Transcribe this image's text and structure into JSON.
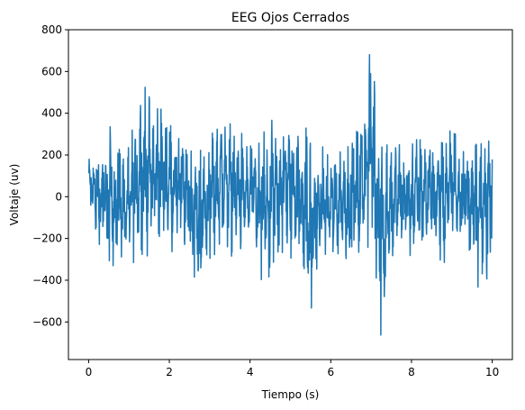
{
  "chart_data": {
    "type": "line",
    "title": "EEG Ojos Cerrados",
    "xlabel": "Tiempo (s)",
    "ylabel": "Voltaje (uv)",
    "xlim": [
      -0.5,
      10.5
    ],
    "ylim": [
      -780,
      800
    ],
    "x_ticks": [
      0,
      2,
      4,
      6,
      8,
      10
    ],
    "y_ticks": [
      -600,
      -400,
      -200,
      0,
      200,
      400,
      600,
      800
    ],
    "x_tick_labels": [
      "0",
      "2",
      "4",
      "6",
      "8",
      "10"
    ],
    "y_tick_labels": [
      "−600",
      "−400",
      "−200",
      "0",
      "200",
      "400",
      "600",
      "800"
    ],
    "grid": false,
    "series": [
      {
        "color": "#1f77b4",
        "envelope": {
          "x": [
            0,
            0.25,
            0.5,
            0.75,
            1.0,
            1.25,
            1.5,
            1.75,
            2.0,
            2.25,
            2.5,
            2.75,
            3.0,
            3.25,
            3.5,
            3.75,
            4.0,
            4.25,
            4.5,
            4.75,
            5.0,
            5.25,
            5.5,
            5.75,
            6.0,
            6.25,
            6.5,
            6.75,
            7.0,
            7.25,
            7.5,
            7.75,
            8.0,
            8.25,
            8.5,
            8.75,
            9.0,
            9.25,
            9.5,
            9.75,
            10.0
          ],
          "upper": [
            200,
            240,
            340,
            320,
            230,
            530,
            520,
            430,
            370,
            350,
            270,
            300,
            330,
            410,
            420,
            310,
            290,
            310,
            360,
            400,
            390,
            340,
            320,
            260,
            230,
            280,
            250,
            420,
            730,
            440,
            300,
            270,
            320,
            300,
            300,
            310,
            400,
            280,
            270,
            320,
            390
          ],
          "lower": [
            -60,
            -250,
            -380,
            -330,
            -370,
            -300,
            -280,
            -200,
            -250,
            -300,
            -310,
            -550,
            -330,
            -250,
            -280,
            -310,
            -300,
            -470,
            -480,
            -310,
            -330,
            -310,
            -650,
            -330,
            -310,
            -300,
            -300,
            -330,
            -220,
            -710,
            -380,
            -280,
            -330,
            -280,
            -220,
            -330,
            -270,
            -220,
            -310,
            -520,
            -250
          ]
        }
      }
    ]
  }
}
